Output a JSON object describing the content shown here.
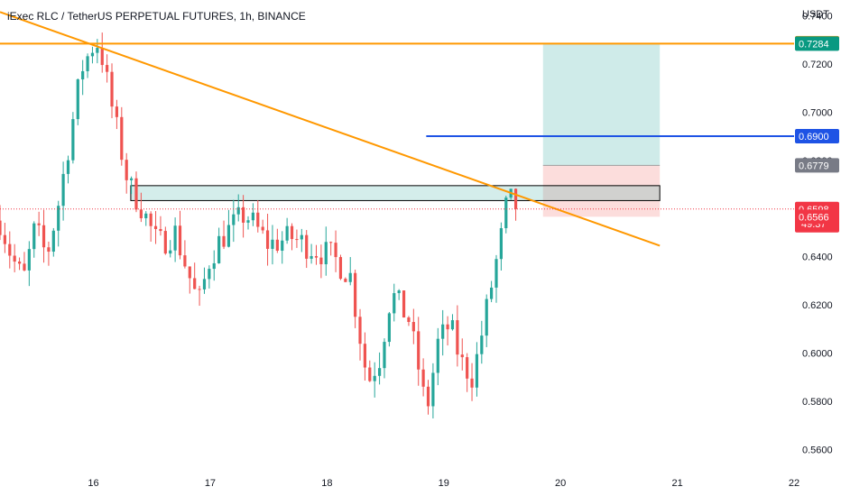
{
  "header": {
    "title": "iExec RLC / TetherUS PERPETUAL FUTURES, 1h, BINANCE"
  },
  "chart_data": {
    "type": "candlestick",
    "title": "iExec RLC / TetherUS PERPETUAL FUTURES, 1h, BINANCE",
    "y_unit": "USDT",
    "ylim": [
      0.552,
      0.7465
    ],
    "y_ticks": [
      "0.7400",
      "0.7200",
      "0.7000",
      "0.6800",
      "0.6600",
      "0.6400",
      "0.6200",
      "0.6000",
      "0.5800",
      "0.5600"
    ],
    "x_ticks": [
      {
        "label": "16",
        "day": 16
      },
      {
        "label": "17",
        "day": 17
      },
      {
        "label": "18",
        "day": 18
      },
      {
        "label": "19",
        "day": 19
      },
      {
        "label": "20",
        "day": 20
      },
      {
        "label": "21",
        "day": 21
      },
      {
        "label": "22",
        "day": 22
      }
    ],
    "xlim_days": [
      15.2,
      22.0
    ],
    "grid": false,
    "colors": {
      "up": "#26a69a",
      "down": "#ef5350",
      "trendline": "#ff9800",
      "resistance": "#ff9800",
      "level": "#1e53e5"
    },
    "annotations": {
      "resistance_line": {
        "price": 0.7284
      },
      "trendline": {
        "start": {
          "day": 15.2,
          "price": 0.7415
        },
        "end": {
          "day": 20.85,
          "price": 0.6446
        }
      },
      "level_line": {
        "price": 0.69,
        "start_day": 18.85,
        "end_day": 22.0
      },
      "zone_box": {
        "start_day": 16.32,
        "end_day": 20.85,
        "top": 0.6695,
        "bottom": 0.6633
      },
      "long_position": {
        "start_day": 19.85,
        "end_day": 20.85,
        "entry": 0.6779,
        "target": 0.7284,
        "stop": 0.6566
      }
    },
    "price_labels": [
      {
        "text": "0.7286",
        "price": 0.7286,
        "color": "#ff9800"
      },
      {
        "text": "0.7284",
        "price": 0.7284,
        "color": "#089981"
      },
      {
        "text": "0.6900",
        "price": 0.69,
        "color": "#1e53e5"
      },
      {
        "text": "0.6779",
        "price": 0.6779,
        "color": "#787b86"
      },
      {
        "text": "0.6598",
        "price": 0.6598,
        "color": "#f23645",
        "countdown": "49:37"
      },
      {
        "text": "0.6566",
        "price": 0.6566,
        "color": "#f23645"
      }
    ],
    "current_price": 0.6598,
    "anchors": [
      [
        15.2,
        0.655
      ],
      [
        15.3,
        0.64
      ],
      [
        15.4,
        0.63
      ],
      [
        15.5,
        0.652
      ],
      [
        15.6,
        0.64
      ],
      [
        15.7,
        0.662
      ],
      [
        15.8,
        0.69
      ],
      [
        15.9,
        0.718
      ],
      [
        16.0,
        0.728
      ],
      [
        16.05,
        0.729
      ],
      [
        16.15,
        0.704
      ],
      [
        16.3,
        0.67
      ],
      [
        16.4,
        0.662
      ],
      [
        16.55,
        0.645
      ],
      [
        16.7,
        0.65
      ],
      [
        16.8,
        0.635
      ],
      [
        16.9,
        0.62
      ],
      [
        17.0,
        0.64
      ],
      [
        17.1,
        0.648
      ],
      [
        17.3,
        0.658
      ],
      [
        17.5,
        0.645
      ],
      [
        17.7,
        0.648
      ],
      [
        17.9,
        0.643
      ],
      [
        18.05,
        0.64
      ],
      [
        18.2,
        0.632
      ],
      [
        18.3,
        0.602
      ],
      [
        18.35,
        0.588
      ],
      [
        18.45,
        0.598
      ],
      [
        18.55,
        0.625
      ],
      [
        18.7,
        0.614
      ],
      [
        18.8,
        0.59
      ],
      [
        18.85,
        0.575
      ],
      [
        18.95,
        0.604
      ],
      [
        19.05,
        0.612
      ],
      [
        19.15,
        0.596
      ],
      [
        19.25,
        0.59
      ],
      [
        19.4,
        0.626
      ],
      [
        19.5,
        0.65
      ],
      [
        19.55,
        0.665
      ],
      [
        19.62,
        0.6598
      ]
    ]
  }
}
